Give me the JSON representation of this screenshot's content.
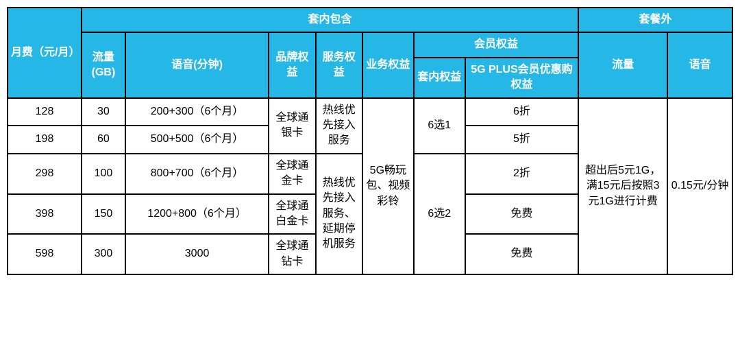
{
  "colors": {
    "header_bg": "#25b7e5",
    "header_text": "#ffffff",
    "cell_bg": "#ffffff",
    "cell_text": "#000000",
    "border": "#000000"
  },
  "headers": {
    "monthly_fee": "月费（元/月）",
    "included": "套内包含",
    "excess": "套餐外",
    "data": "流量(GB)",
    "voice": "语音(分钟)",
    "brand_benefit": "品牌权益",
    "service_benefit": "服务权益",
    "business_benefit": "业务权益",
    "member_benefit": "会员权益",
    "inner_benefit": "套内权益",
    "plus_benefit": "5G PLUS会员优惠购权益",
    "excess_data": "流量",
    "excess_voice": "语音"
  },
  "rows": [
    {
      "fee": "128",
      "gb": "30",
      "voice": "200+300（6个月）",
      "plus": "6折"
    },
    {
      "fee": "198",
      "gb": "60",
      "voice": "500+500（6个月）",
      "plus": "5折"
    },
    {
      "fee": "298",
      "gb": "100",
      "voice": "800+700（6个月）",
      "plus": "2折"
    },
    {
      "fee": "398",
      "gb": "150",
      "voice": "1200+800（6个月）",
      "plus": "免费"
    },
    {
      "fee": "598",
      "gb": "300",
      "voice": "3000",
      "plus": "免费"
    }
  ],
  "brand": {
    "silver": "全球通银卡",
    "gold": "全球通金卡",
    "platinum": "全球通白金卡",
    "diamond": "全球通钻卡"
  },
  "service": {
    "s1": "热线优先接入服务",
    "s2": "热线优先接入服务、延期停机服务"
  },
  "business": "5G畅玩包、视频彩铃",
  "inner": {
    "pick1": "6选1",
    "pick2": "6选2"
  },
  "excess": {
    "data": "超出后5元1G，满15元后按照3元1G进行计费",
    "voice": "0.15元/分钟"
  }
}
